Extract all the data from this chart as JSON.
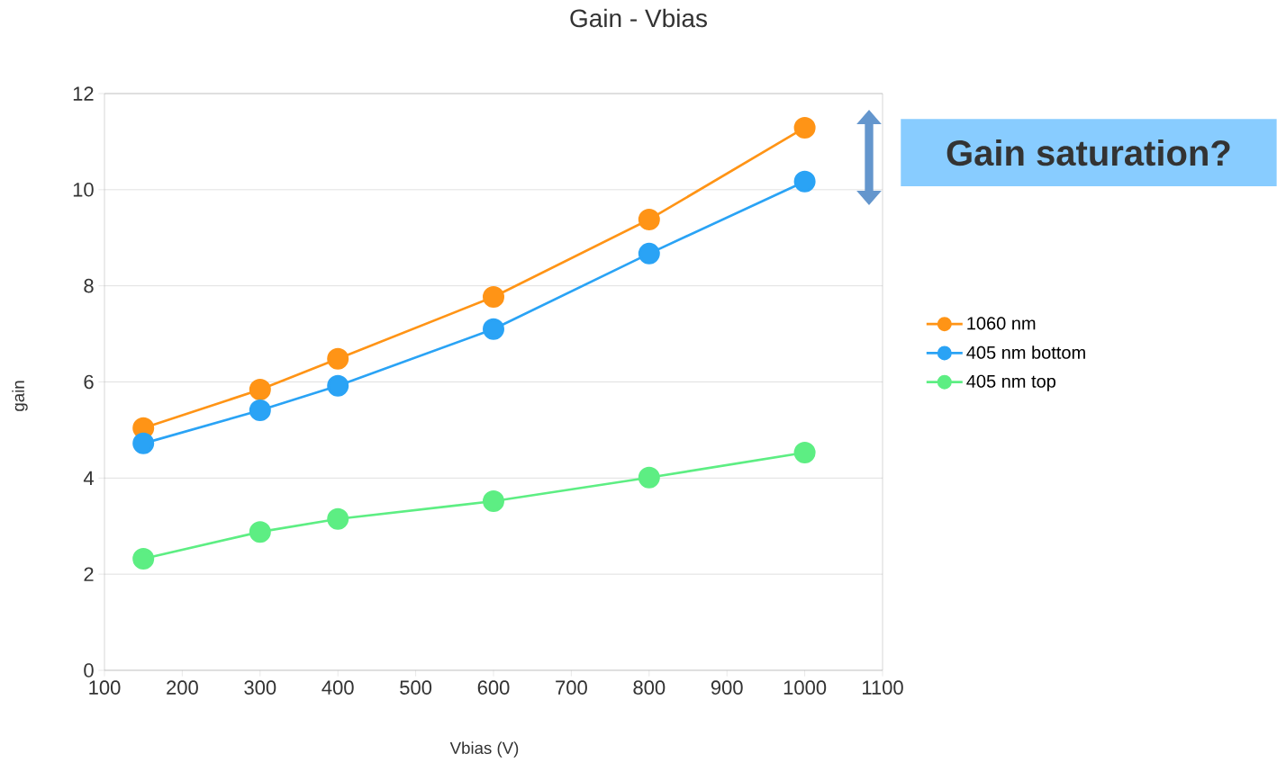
{
  "chart_data": {
    "type": "line",
    "title": "Gain - Vbias",
    "xlabel": "Vbias (V)",
    "ylabel": "gain",
    "x": [
      150,
      300,
      400,
      600,
      800,
      1000
    ],
    "series": [
      {
        "name": "1060 nm",
        "color": "#ff9416",
        "values": [
          5.04,
          5.84,
          6.48,
          7.77,
          9.38,
          11.29
        ]
      },
      {
        "name": "405 nm bottom",
        "color": "#2aa3f5",
        "values": [
          4.72,
          5.41,
          5.92,
          7.1,
          8.67,
          10.17
        ]
      },
      {
        "name": "405 nm top",
        "color": "#5dee83",
        "values": [
          2.32,
          2.88,
          3.15,
          3.52,
          4.01,
          4.53
        ]
      }
    ],
    "xlim": [
      100,
      1100
    ],
    "xticks": [
      100,
      200,
      300,
      400,
      500,
      600,
      700,
      800,
      900,
      1000,
      1100
    ],
    "ylim": [
      0,
      12
    ],
    "yticks": [
      0,
      2,
      4,
      6,
      8,
      10,
      12
    ],
    "grid": "y",
    "legend": "right",
    "marker": "circle",
    "line_style": "solid",
    "annotations": [
      "Gain saturation?"
    ]
  }
}
